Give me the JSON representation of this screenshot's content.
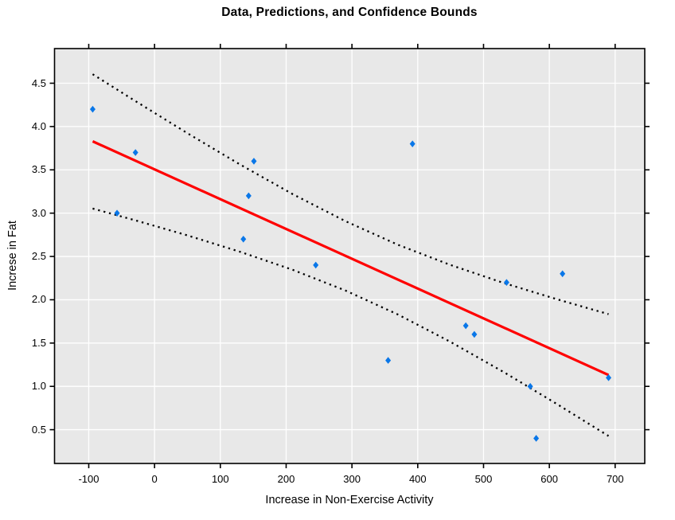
{
  "chart_data": {
    "type": "scatter",
    "title": "Data, Predictions, and Confidence Bounds",
    "xlabel": "Increase in Non-Exercise Activity",
    "ylabel": "Increse in Fat",
    "xlim": [
      -152,
      745
    ],
    "ylim": [
      0.11,
      4.9
    ],
    "x_ticks": [
      -100,
      0,
      100,
      200,
      300,
      400,
      500,
      600,
      700
    ],
    "y_ticks": [
      0.5,
      1.0,
      1.5,
      2.0,
      2.5,
      3.0,
      3.5,
      4.0,
      4.5
    ],
    "grid": true,
    "legend": "none",
    "plot_bg": "#e8e8e8",
    "grid_color": "#ffffff",
    "axis_color": "#000000",
    "point_color": "#0a77e8",
    "point_marker": "diamond",
    "points": [
      [
        -94,
        4.2
      ],
      [
        -57,
        3.0
      ],
      [
        -29,
        3.7
      ],
      [
        135,
        2.7
      ],
      [
        143,
        3.2
      ],
      [
        151,
        3.6
      ],
      [
        245,
        2.4
      ],
      [
        355,
        1.3
      ],
      [
        392,
        3.8
      ],
      [
        473,
        1.7
      ],
      [
        486,
        1.6
      ],
      [
        535,
        2.2
      ],
      [
        571,
        1.0
      ],
      [
        580,
        0.4
      ],
      [
        620,
        2.3
      ],
      [
        690,
        1.1
      ]
    ],
    "regression_line": {
      "name": "prediction-line",
      "color": "#ff0000",
      "x": [
        -94,
        690
      ],
      "y": [
        3.829,
        1.131
      ]
    },
    "confidence_bounds": {
      "name": "95%-confidence-bounds",
      "color": "#000000",
      "style": "dotted",
      "x": [
        -94,
        -30,
        50,
        130,
        210,
        290,
        370,
        450,
        530,
        610,
        690
      ],
      "upper": [
        4.604,
        4.298,
        3.923,
        3.561,
        3.219,
        2.908,
        2.635,
        2.401,
        2.195,
        2.009,
        1.834
      ],
      "lower": [
        3.053,
        2.919,
        2.743,
        2.554,
        2.346,
        2.107,
        1.829,
        1.513,
        1.168,
        0.803,
        0.427
      ]
    }
  }
}
